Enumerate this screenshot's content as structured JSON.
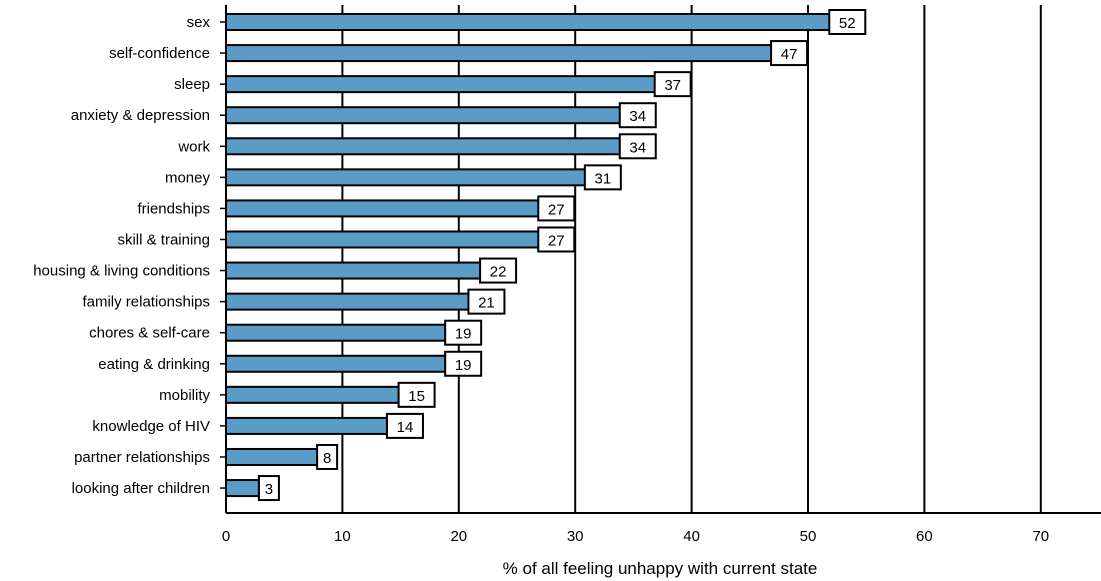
{
  "chart_data": {
    "type": "bar",
    "orientation": "horizontal",
    "categories": [
      "sex",
      "self-confidence",
      "sleep",
      "anxiety & depression",
      "work",
      "money",
      "friendships",
      "skill & training",
      "housing & living conditions",
      "family relationships",
      "chores & self-care",
      "eating & drinking",
      "mobility",
      "knowledge of HIV",
      "partner relationships",
      "looking after children"
    ],
    "values": [
      52,
      47,
      37,
      34,
      34,
      31,
      27,
      27,
      22,
      21,
      19,
      19,
      15,
      14,
      8,
      3
    ],
    "xlabel": "% of all feeling unhappy with current state",
    "ylabel": "",
    "xlim": [
      0,
      75
    ],
    "xticks": [
      0,
      10,
      20,
      30,
      40,
      50,
      60,
      70
    ],
    "grid": "vertical",
    "data_labels": true,
    "colors": {
      "bar": "#5b9bc8",
      "bar_stroke": "#000000",
      "grid": "#000000"
    }
  }
}
